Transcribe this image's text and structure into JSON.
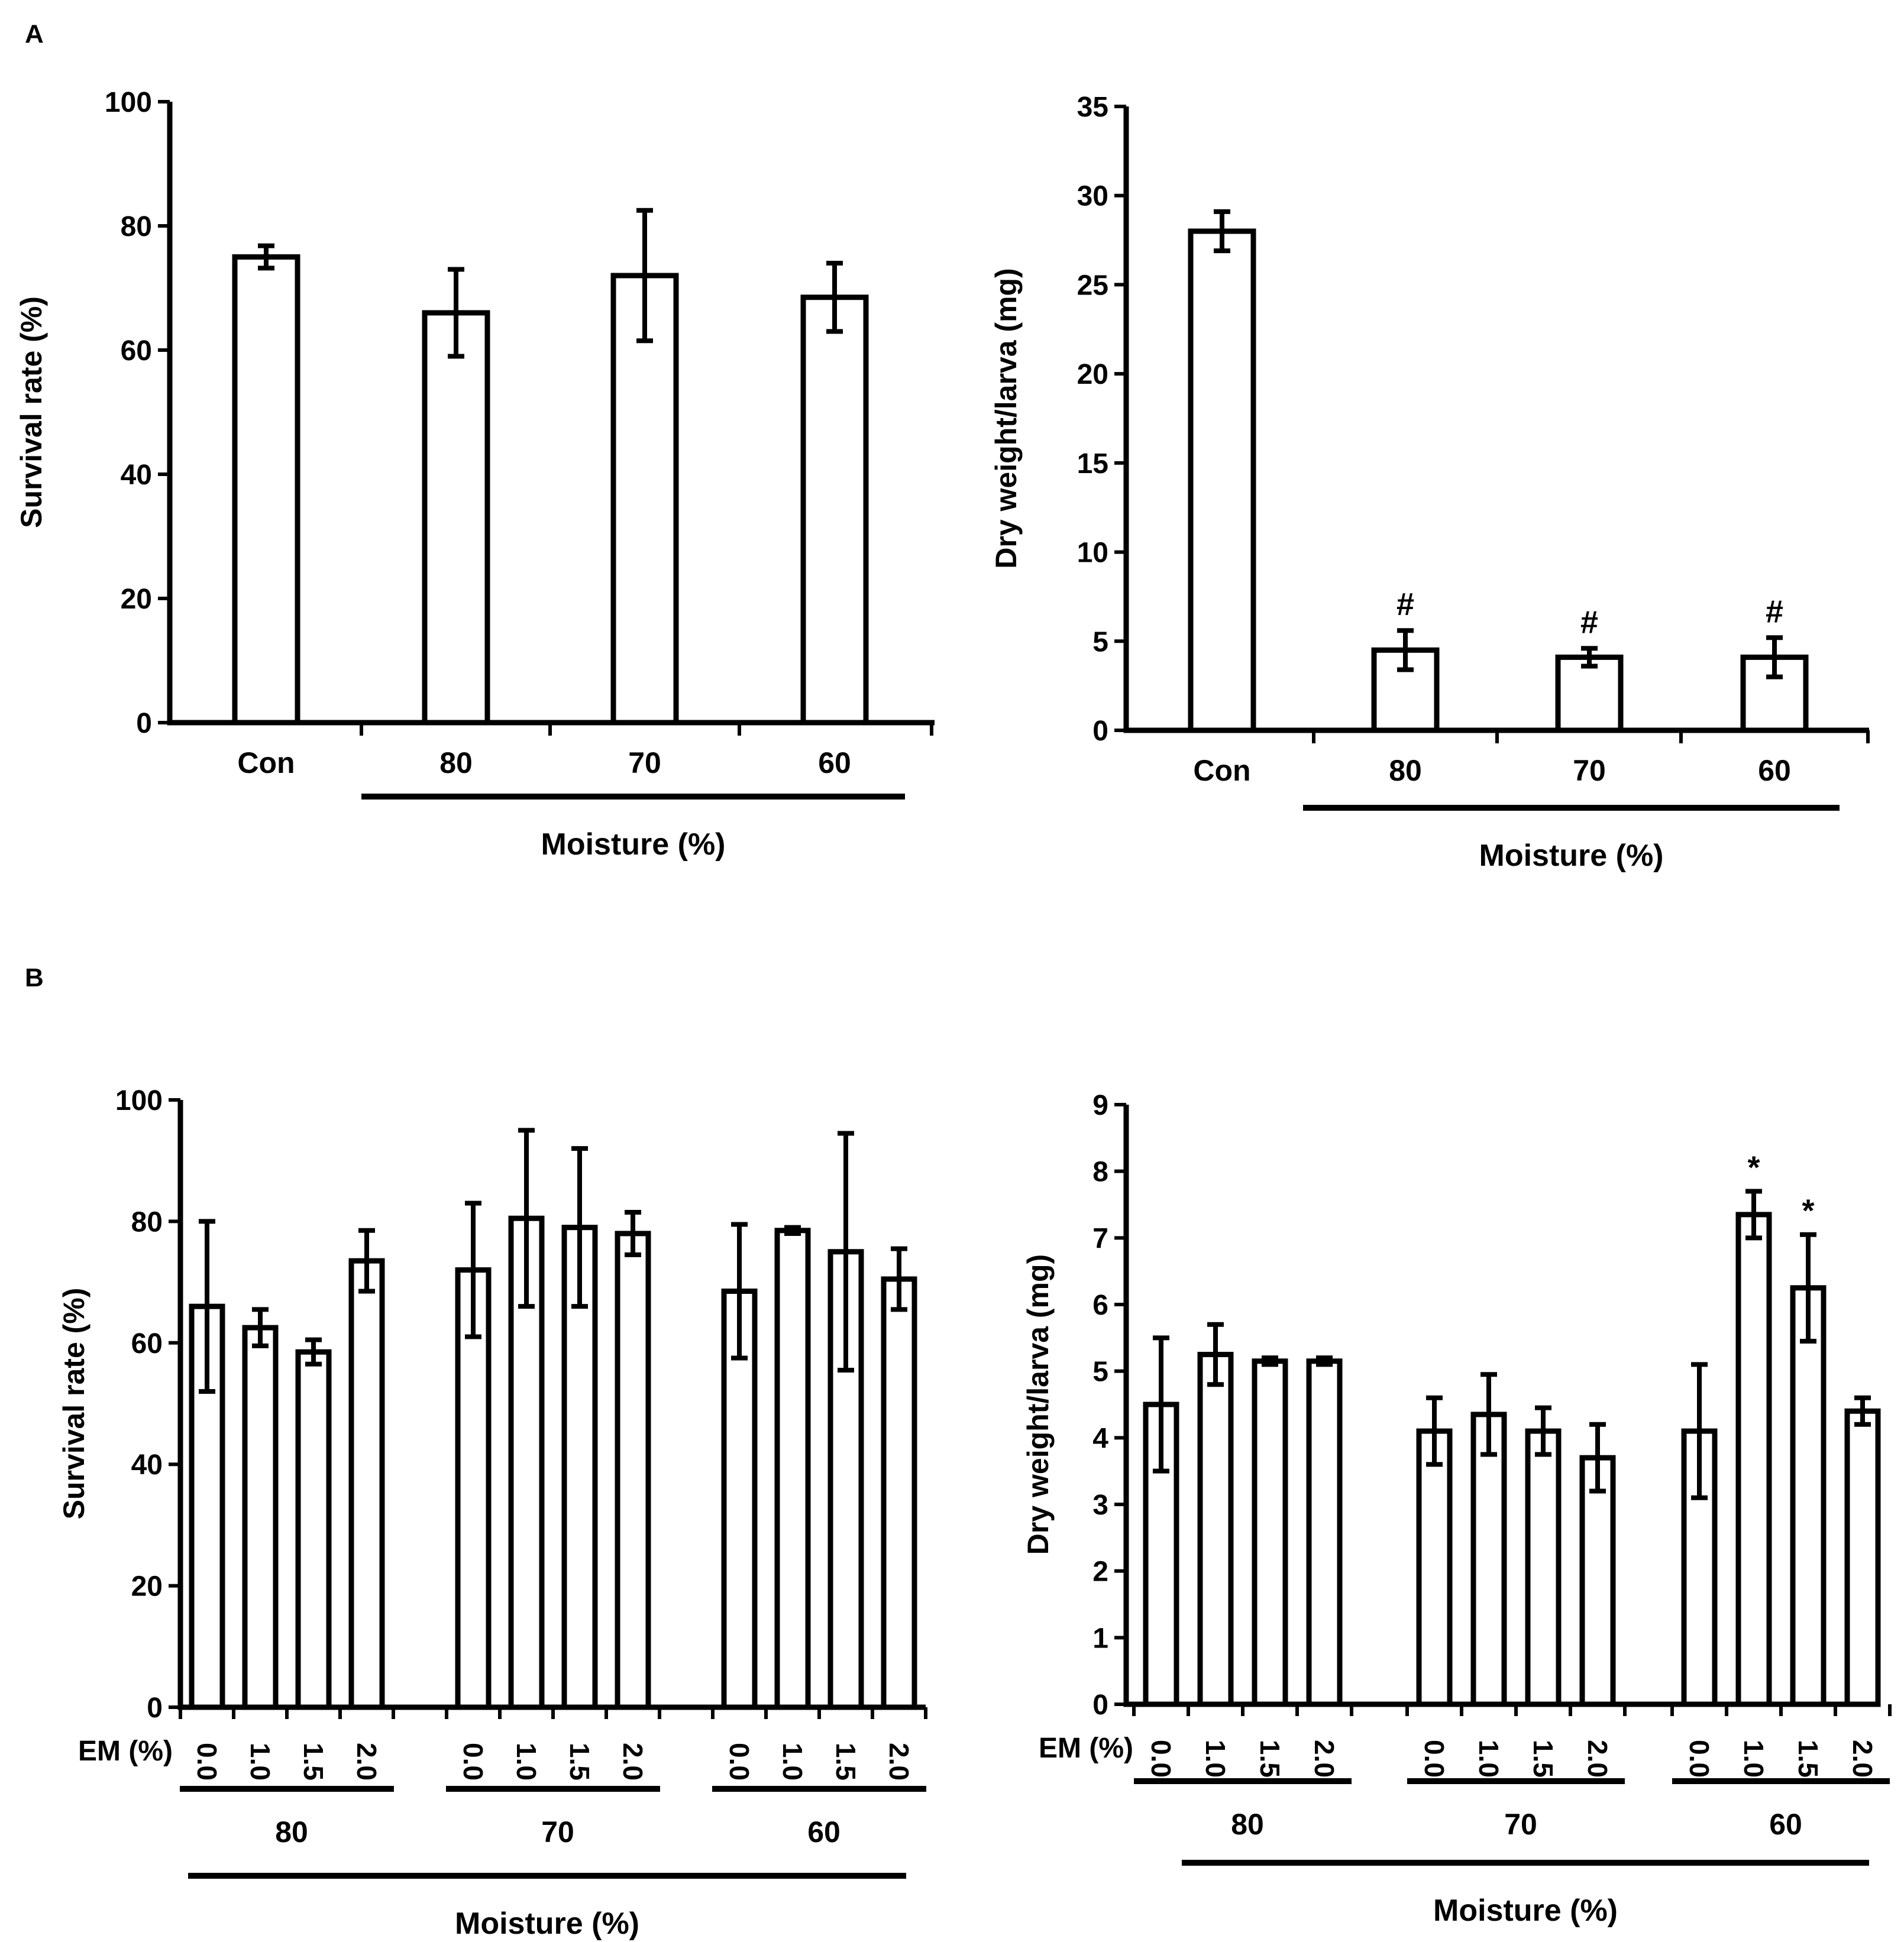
{
  "panel_labels": [
    "A",
    "B"
  ],
  "chart_data": [
    {
      "id": "A_survival",
      "panel": "A",
      "type": "bar",
      "ylabel": "Survival rate (%)",
      "xlabel": "Moisture (%)",
      "ylim": [
        0,
        100
      ],
      "yticks": [
        0,
        20,
        40,
        60,
        80,
        100
      ],
      "categories": [
        "Con",
        "80",
        "70",
        "60"
      ],
      "values": [
        75,
        66,
        72,
        68.5
      ],
      "errors": [
        1.8,
        7,
        10.5,
        5.5
      ],
      "annotations": [
        "",
        "",
        "",
        ""
      ],
      "grid": false,
      "legend": "none"
    },
    {
      "id": "A_dryweight",
      "panel": "A",
      "type": "bar",
      "ylabel": "Dry weight/larva (mg)",
      "xlabel": "Moisture (%)",
      "ylim": [
        0,
        35
      ],
      "yticks": [
        0,
        5,
        10,
        15,
        20,
        25,
        30,
        35
      ],
      "categories": [
        "Con",
        "80",
        "70",
        "60"
      ],
      "values": [
        28,
        4.5,
        4.1,
        4.1
      ],
      "errors": [
        1.1,
        1.1,
        0.5,
        1.1
      ],
      "annotations": [
        "",
        "#",
        "#",
        "#"
      ],
      "grid": false,
      "legend": "none"
    },
    {
      "id": "B_survival",
      "panel": "B",
      "type": "bar",
      "ylabel": "Survival rate (%)",
      "xlabel": "Moisture (%)",
      "ylim": [
        0,
        100
      ],
      "yticks": [
        0,
        20,
        40,
        60,
        80,
        100
      ],
      "sub_axis_label": "EM (%)",
      "em_levels": [
        "0.0",
        "1.0",
        "1.5",
        "2.0"
      ],
      "groups": [
        "80",
        "70",
        "60"
      ],
      "values": [
        [
          66,
          62.5,
          58.5,
          73.5
        ],
        [
          72,
          80.5,
          79,
          78
        ],
        [
          68.5,
          78.5,
          75,
          70.5
        ]
      ],
      "errors": [
        [
          14,
          3,
          2,
          5
        ],
        [
          11,
          14.5,
          13,
          3.5
        ],
        [
          11,
          0.5,
          19.5,
          5
        ]
      ],
      "annotations": [
        [
          "",
          "",
          "",
          ""
        ],
        [
          "",
          "",
          "",
          ""
        ],
        [
          "",
          "",
          "",
          ""
        ]
      ],
      "grid": false,
      "legend": "none"
    },
    {
      "id": "B_dryweight",
      "panel": "B",
      "type": "bar",
      "ylabel": "Dry weight/larva (mg)",
      "xlabel": "Moisture (%)",
      "ylim": [
        0,
        9
      ],
      "yticks": [
        0,
        1,
        2,
        3,
        4,
        5,
        6,
        7,
        8,
        9
      ],
      "sub_axis_label": "EM (%)",
      "em_levels": [
        "0.0",
        "1.0",
        "1.5",
        "2.0"
      ],
      "groups": [
        "80",
        "70",
        "60"
      ],
      "values": [
        [
          4.5,
          5.25,
          5.15,
          5.15
        ],
        [
          4.1,
          4.35,
          4.1,
          3.7
        ],
        [
          4.1,
          7.35,
          6.25,
          4.4
        ]
      ],
      "errors": [
        [
          1,
          0.45,
          0.05,
          0.05
        ],
        [
          0.5,
          0.6,
          0.35,
          0.5
        ],
        [
          1,
          0.35,
          0.8,
          0.2
        ]
      ],
      "annotations": [
        [
          "",
          "",
          "",
          ""
        ],
        [
          "",
          "",
          "",
          ""
        ],
        [
          "",
          "*",
          "*",
          ""
        ]
      ],
      "grid": false,
      "legend": "none"
    }
  ]
}
